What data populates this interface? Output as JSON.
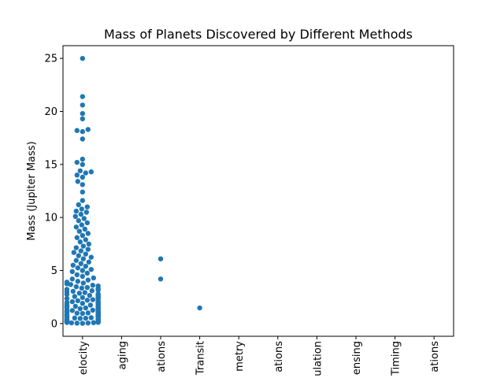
{
  "chart_data": {
    "type": "scatter",
    "subtype": "swarm",
    "title": "Mass of Planets Discovered by Different Methods",
    "xlabel": "",
    "ylabel": "Mass (Jupiter Mass)",
    "ylim": [
      -1.2,
      26.2
    ],
    "yticks": [
      0,
      5,
      10,
      15,
      20,
      25
    ],
    "grid": false,
    "categories_visible_text": [
      "elocity",
      "aging",
      "ations",
      "Transit",
      "metry",
      "ations",
      "ulation",
      "ensing",
      "Timing",
      "ations"
    ],
    "series_color": "#1f77b4",
    "points": [
      {
        "category_index": 0,
        "masses": [
          0.02,
          0.04,
          0.05,
          0.06,
          0.08,
          0.1,
          0.11,
          0.12,
          0.13,
          0.15,
          0.16,
          0.18,
          0.2,
          0.21,
          0.22,
          0.24,
          0.25,
          0.27,
          0.29,
          0.3,
          0.33,
          0.35,
          0.37,
          0.4,
          0.42,
          0.45,
          0.48,
          0.5,
          0.52,
          0.55,
          0.58,
          0.6,
          0.62,
          0.65,
          0.68,
          0.7,
          0.72,
          0.75,
          0.78,
          0.8,
          0.82,
          0.85,
          0.88,
          0.9,
          0.92,
          0.95,
          0.98,
          1.0,
          1.02,
          1.05,
          1.08,
          1.1,
          1.12,
          1.15,
          1.18,
          1.2,
          1.23,
          1.26,
          1.3,
          1.33,
          1.36,
          1.4,
          1.43,
          1.47,
          1.5,
          1.53,
          1.57,
          1.6,
          1.63,
          1.67,
          1.7,
          1.74,
          1.78,
          1.82,
          1.86,
          1.9,
          1.94,
          1.98,
          2.02,
          2.06,
          2.1,
          2.15,
          2.2,
          2.25,
          2.3,
          2.35,
          2.4,
          2.45,
          2.5,
          2.55,
          2.6,
          2.65,
          2.7,
          2.75,
          2.8,
          2.86,
          2.92,
          2.98,
          3.04,
          3.1,
          3.16,
          3.22,
          3.28,
          3.34,
          3.4,
          3.47,
          3.54,
          3.61,
          3.68,
          3.75,
          3.82,
          3.9,
          3.98,
          4.1,
          4.2,
          4.3,
          4.45,
          4.6,
          4.75,
          4.9,
          5.0,
          5.1,
          5.25,
          5.4,
          5.5,
          5.65,
          5.8,
          5.95,
          6.1,
          6.25,
          6.4,
          6.55,
          6.7,
          6.85,
          7.0,
          7.15,
          7.3,
          7.5,
          7.7,
          7.9,
          8.1,
          8.3,
          8.5,
          8.7,
          8.9,
          9.1,
          9.3,
          9.5,
          9.7,
          9.9,
          10.1,
          10.3,
          10.5,
          10.6,
          10.8,
          11.0,
          11.2,
          11.6,
          12.4,
          13.1,
          13.4,
          13.8,
          14.0,
          14.2,
          14.3,
          14.4,
          15.0,
          15.2,
          15.5,
          17.4,
          18.1,
          18.2,
          18.3,
          19.3,
          19.8,
          20.6,
          21.4,
          25.0
        ]
      },
      {
        "category_index": 2,
        "masses": [
          4.2,
          6.1
        ]
      },
      {
        "category_index": 3,
        "masses": [
          1.47
        ]
      }
    ]
  }
}
